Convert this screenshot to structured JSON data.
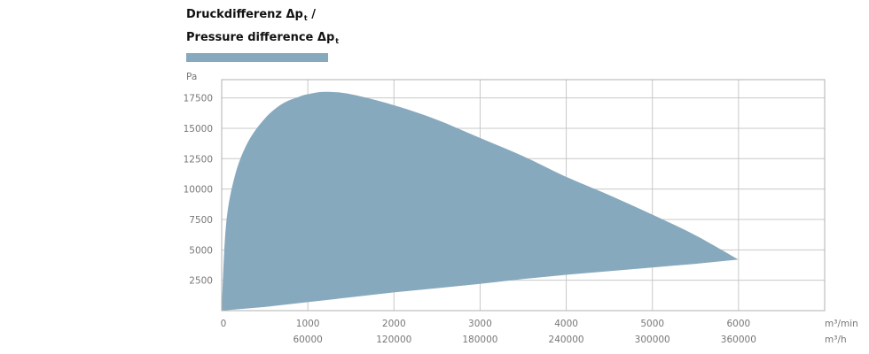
{
  "chart_data": {
    "type": "area",
    "title_line1_text": "Druckdifferenz Δp",
    "title_line1_sub": "t",
    "title_line1_suffix": " /",
    "title_line2_text": "Pressure difference Δp",
    "title_line2_sub": "t",
    "ylabel": "Pa",
    "x_unit_primary": "m³/min",
    "x_unit_secondary": "m³/h",
    "xlim": [
      0,
      7000
    ],
    "ylim": [
      0,
      19000
    ],
    "x_ticks": [
      0,
      1000,
      2000,
      3000,
      4000,
      5000,
      6000
    ],
    "x_tick_labels": [
      "0",
      "1000",
      "2000",
      "3000",
      "4000",
      "5000",
      "6000"
    ],
    "x2_tick_labels": [
      "",
      "60000",
      "120000",
      "180000",
      "240000",
      "300000",
      "360000"
    ],
    "y_ticks": [
      2500,
      5000,
      7500,
      10000,
      12500,
      15000,
      17500
    ],
    "y_tick_labels": [
      "2500",
      "5000",
      "7500",
      "10000",
      "12500",
      "15000",
      "17500"
    ],
    "grid": true,
    "fill_color": "#87a9bd",
    "grid_color": "#c8c8c8",
    "upper_boundary": {
      "x": [
        0,
        50,
        150,
        300,
        500,
        700,
        900,
        1000,
        1200,
        1500,
        2000,
        2500,
        3000,
        3500,
        4000,
        4500,
        5000,
        5500,
        6000
      ],
      "y": [
        0,
        7000,
        11000,
        13800,
        15800,
        17000,
        17600,
        17800,
        18000,
        17800,
        16900,
        15700,
        14200,
        12700,
        11000,
        9500,
        7900,
        6200,
        4200
      ]
    },
    "lower_boundary": {
      "x": [
        0,
        500,
        1000,
        1500,
        2000,
        2500,
        3000,
        3500,
        4000,
        4500,
        5000,
        5500,
        6000
      ],
      "y": [
        0,
        300,
        700,
        1100,
        1500,
        1850,
        2200,
        2600,
        2950,
        3250,
        3550,
        3850,
        4200
      ]
    }
  }
}
